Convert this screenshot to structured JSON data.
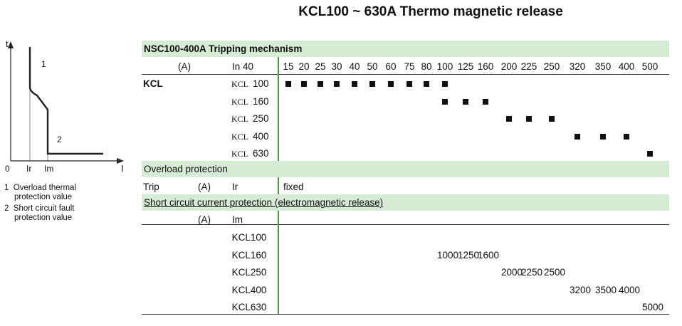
{
  "title": "KCL100 ~ 630A Thermo magnetic release",
  "diagram": {
    "y_axis": "t",
    "x_axis": "I",
    "origin": "0",
    "ir": "Ir",
    "im": "Im",
    "curve1": "1",
    "curve2": "2",
    "legend": [
      {
        "num": "1",
        "line1": "Overload thermal",
        "line2": "protection value"
      },
      {
        "num": "2",
        "line1": "Short circuit fault",
        "line2": "protection value"
      }
    ]
  },
  "table": {
    "section1_title": "NSC100-400A Tripping mechanism",
    "unit_a": "(A)",
    "in_label": "In 40",
    "columns": [
      "15",
      "20",
      "25",
      "30",
      "40",
      "50",
      "60",
      "75",
      "80",
      "100",
      "125",
      "160",
      "200",
      "225",
      "250",
      "320",
      "350",
      "400",
      "500"
    ],
    "brand": "KCL",
    "frames": [
      {
        "prefix": "KCL",
        "size": "100",
        "cols": [
          0,
          1,
          2,
          3,
          4,
          5,
          6,
          7,
          8,
          9
        ]
      },
      {
        "prefix": "KCL",
        "size": "160",
        "cols": [
          9,
          10,
          11
        ]
      },
      {
        "prefix": "KCL",
        "size": "250",
        "cols": [
          12,
          13,
          14
        ]
      },
      {
        "prefix": "KCL",
        "size": "400",
        "cols": [
          15,
          16,
          17
        ]
      },
      {
        "prefix": "KCL",
        "size": "630",
        "cols": [
          18
        ]
      }
    ],
    "section2_title": "Overload protection",
    "trip_label": "Trip",
    "trip_unit": "(A)",
    "ir_label": "Ir",
    "ir_value": "fixed",
    "section3_title": "Short circuit current protection (electromagnetic release)",
    "im_unit": "(A)",
    "im_label": "Im",
    "im_rows": [
      {
        "model": "KCL100",
        "values": []
      },
      {
        "model": "KCL160",
        "values": [
          {
            "col": 9,
            "v": "1000"
          },
          {
            "col": 10,
            "v": "1250"
          },
          {
            "col": 11,
            "v": "1600"
          }
        ]
      },
      {
        "model": "KCL250",
        "values": [
          {
            "col": 12,
            "v": "2000"
          },
          {
            "col": 13,
            "v": "2250"
          },
          {
            "col": 14,
            "v": "2500"
          }
        ]
      },
      {
        "model": "KCL400",
        "values": [
          {
            "col": 15,
            "v": "3200"
          },
          {
            "col": 16,
            "v": "3500"
          },
          {
            "col": 17,
            "v": "4000"
          }
        ]
      },
      {
        "model": "KCL630",
        "values": [
          {
            "col": 18,
            "v": "5000"
          }
        ]
      }
    ]
  }
}
